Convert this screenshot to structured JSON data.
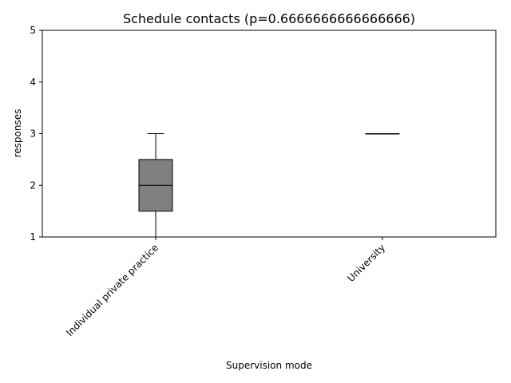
{
  "chart_data": {
    "type": "box",
    "title": "Schedule contacts (p=0.6666666666666666)",
    "xlabel": "Supervision mode",
    "ylabel": "responses",
    "ylim": [
      1,
      5
    ],
    "yticks": [
      1,
      2,
      3,
      4,
      5
    ],
    "categories": [
      "Individual private practice",
      "University"
    ],
    "boxes": [
      {
        "category": "Individual private practice",
        "whislo": 1,
        "q1": 1.5,
        "median": 2,
        "q3": 2.5,
        "whishi": 3
      },
      {
        "category": "University",
        "whislo": 3,
        "q1": 3,
        "median": 3,
        "q3": 3,
        "whishi": 3
      }
    ],
    "box_color": "#808080",
    "grid": false
  }
}
